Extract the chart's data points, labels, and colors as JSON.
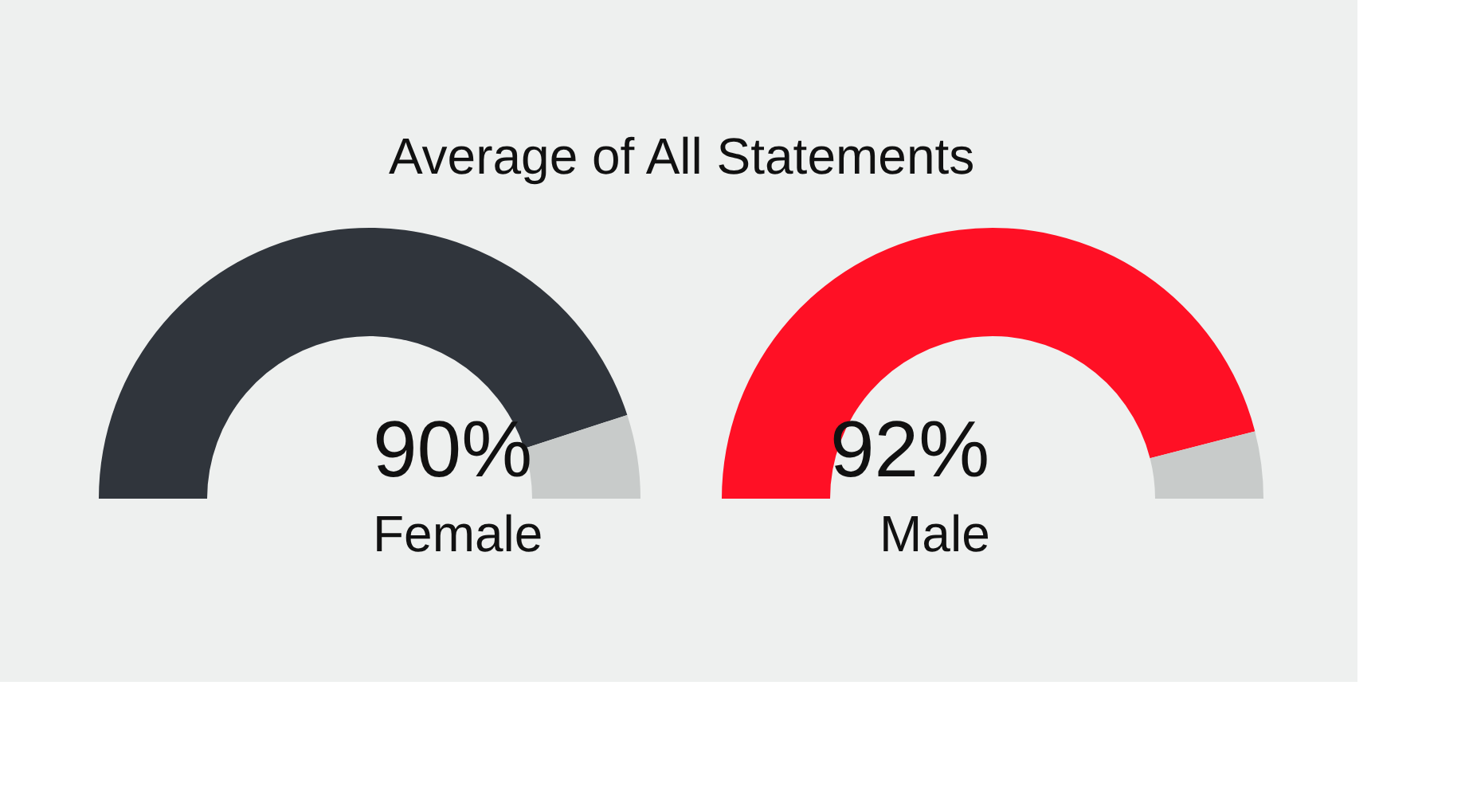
{
  "chart_data": [
    {
      "type": "donut",
      "title": "Average of All Statements",
      "categories": [
        null,
        null
      ],
      "values": [
        90,
        10
      ],
      "colors": [
        "#30353c",
        "#c8cbca"
      ],
      "value_labels": [
        "90%",
        null
      ],
      "xlabel": "Female"
    },
    {
      "type": "donut",
      "categories": [
        null,
        null
      ],
      "values": [
        92,
        8
      ],
      "colors": [
        "#ff1025",
        "#c8cbca"
      ],
      "value_labels": [
        "92%",
        null
      ],
      "xlabel": "Male"
    }
  ]
}
